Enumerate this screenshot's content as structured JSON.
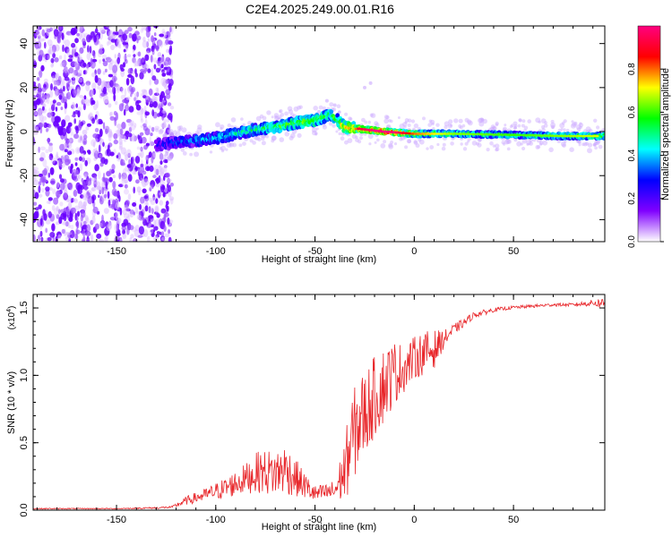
{
  "chart_data": [
    {
      "type": "heatmap",
      "title": "C2E4.2025.249.00.01.R16",
      "xlabel": "Height of straight line (km)",
      "ylabel": "Frequency (Hz)",
      "xlim": [
        -192,
        96
      ],
      "ylim": [
        -50,
        48
      ],
      "xticks": [
        -150,
        -100,
        -50,
        0,
        50
      ],
      "yticks": [
        -40,
        -20,
        0,
        20,
        40
      ],
      "noise_region_end_km": -122,
      "ridge": [
        {
          "x": -130,
          "y": -6,
          "amp": 0.2
        },
        {
          "x": -120,
          "y": -5,
          "amp": 0.3
        },
        {
          "x": -110,
          "y": -4,
          "amp": 0.35
        },
        {
          "x": -100,
          "y": -3,
          "amp": 0.4
        },
        {
          "x": -90,
          "y": -1,
          "amp": 0.45
        },
        {
          "x": -80,
          "y": 1,
          "amp": 0.5
        },
        {
          "x": -70,
          "y": 2,
          "amp": 0.55
        },
        {
          "x": -60,
          "y": 4,
          "amp": 0.6
        },
        {
          "x": -50,
          "y": 5,
          "amp": 0.65
        },
        {
          "x": -42,
          "y": 8,
          "amp": 0.5
        },
        {
          "x": -35,
          "y": 2,
          "amp": 0.75
        },
        {
          "x": -25,
          "y": 1,
          "amp": 0.85
        },
        {
          "x": -15,
          "y": 0,
          "amp": 0.98
        },
        {
          "x": 0,
          "y": -1,
          "amp": 0.7
        },
        {
          "x": 20,
          "y": -1,
          "amp": 0.55
        },
        {
          "x": 50,
          "y": -1.5,
          "amp": 0.5
        },
        {
          "x": 75,
          "y": -2,
          "amp": 0.55
        },
        {
          "x": 94,
          "y": -2,
          "amp": 0.6
        }
      ],
      "colorbar": {
        "label": "Normalized spectral amplitude",
        "range": [
          0,
          1
        ],
        "ticks": [
          "0.0",
          "0.2",
          "0.4",
          "0.6",
          "0.8"
        ],
        "colors": [
          "#ffffff",
          "#8000ff",
          "#0000ff",
          "#00ffff",
          "#00ff00",
          "#ffff00",
          "#ff0000",
          "#ff0080"
        ]
      }
    },
    {
      "type": "line",
      "xlabel": "Height of straight line (km)",
      "ylabel": "SNR (10 * v/v)",
      "multiplier_label": "(x10",
      "multiplier_exp": "4",
      "multiplier_close": ")",
      "xlim": [
        -192,
        96
      ],
      "ylim": [
        0,
        1.6
      ],
      "xticks": [
        -150,
        -100,
        -50,
        0,
        50
      ],
      "yticks": [
        "0.0",
        "0.5",
        "1.0",
        "1.5"
      ],
      "series": [
        {
          "name": "SNR",
          "color": "#e8262a",
          "x": [
            -192,
            -170,
            -150,
            -130,
            -122,
            -115,
            -105,
            -95,
            -85,
            -78,
            -70,
            -65,
            -60,
            -55,
            -50,
            -45,
            -40,
            -35,
            -32,
            -28,
            -25,
            -20,
            -15,
            -10,
            -5,
            0,
            5,
            10,
            15,
            20,
            25,
            30,
            40,
            50,
            60,
            70,
            80,
            90,
            96
          ],
          "y": [
            0.01,
            0.01,
            0.01,
            0.015,
            0.02,
            0.06,
            0.1,
            0.14,
            0.2,
            0.24,
            0.22,
            0.25,
            0.2,
            0.15,
            0.1,
            0.11,
            0.12,
            0.22,
            0.4,
            0.55,
            0.62,
            0.75,
            0.85,
            0.95,
            1.0,
            1.08,
            1.12,
            1.15,
            1.25,
            1.33,
            1.38,
            1.44,
            1.48,
            1.5,
            1.51,
            1.52,
            1.52,
            1.53,
            1.52
          ],
          "noise_amp": [
            0.005,
            0.005,
            0.005,
            0.008,
            0.01,
            0.04,
            0.06,
            0.1,
            0.14,
            0.2,
            0.22,
            0.24,
            0.18,
            0.12,
            0.08,
            0.08,
            0.1,
            0.3,
            0.4,
            0.45,
            0.4,
            0.38,
            0.36,
            0.3,
            0.22,
            0.2,
            0.2,
            0.18,
            0.08,
            0.05,
            0.04,
            0.03,
            0.02,
            0.015,
            0.015,
            0.015,
            0.015,
            0.03,
            0.06
          ]
        }
      ]
    }
  ]
}
